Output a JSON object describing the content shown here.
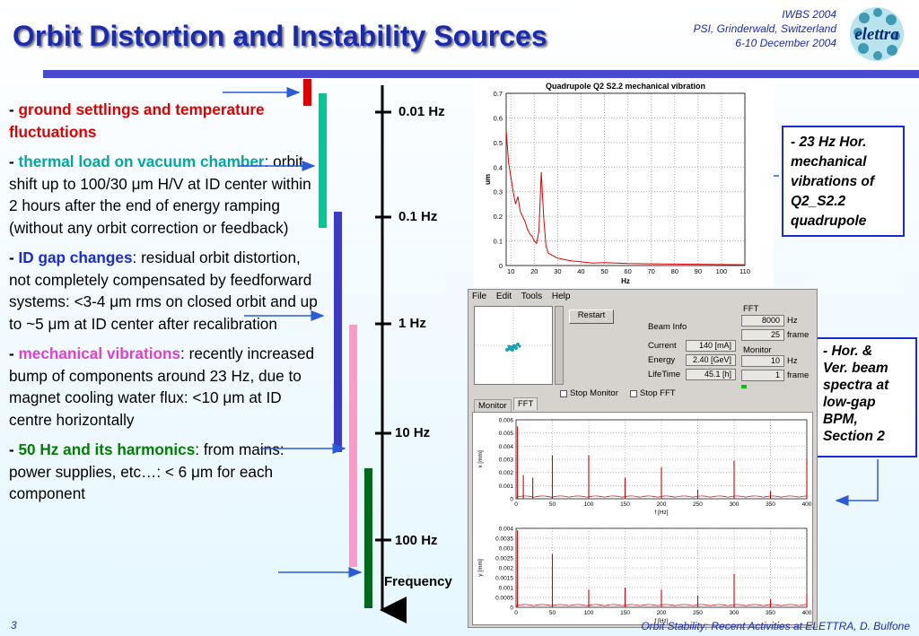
{
  "title": "Orbit Distortion and Instability Sources",
  "conference": {
    "line1": "IWBS 2004",
    "line2": "PSI, Grinderwald, Switzerland",
    "line3": "6-10 December 2004"
  },
  "logo_text": "elettra",
  "items": [
    {
      "lead": "- ",
      "highlight": "ground settlings and temperature fluctuations",
      "rest": ""
    },
    {
      "lead": "- ",
      "highlight": "thermal load on vacuum chamber",
      "rest": ": orbit shift up to 100/30 μm H/V at ID center within 2 hours after the end of energy ramping (without any orbit correction or feedback)"
    },
    {
      "lead": "- ",
      "highlight": "ID gap changes",
      "rest": ": residual orbit distortion, not completely compensated by feedforward systems: <3-4 μm rms on closed orbit and up to ~5 μm at ID center after recalibration"
    },
    {
      "lead": "- ",
      "highlight": "mechanical vibrations",
      "rest": ": recently increased bump of components around 23 Hz, due to magnet cooling water flux: <10 μm at ID centre horizontally"
    },
    {
      "lead": "- ",
      "highlight": "50 Hz and its harmonics",
      "rest": ": from mains: power supplies, etc…: < 6 μm for each component"
    }
  ],
  "frequency_axis": {
    "labels": [
      "0.01 Hz",
      "0.1 Hz",
      "1 Hz",
      "10 Hz",
      "100 Hz"
    ],
    "caption": "Frequency"
  },
  "colors": {
    "title": "#1a2bb0",
    "red": "#e00000",
    "teal": "#00c896",
    "blue": "#3a3ac8",
    "pink": "#ff99cc",
    "green": "#006a1a"
  },
  "callouts": {
    "box1": [
      "- 23 Hz Hor.",
      "mechanical",
      "vibrations of",
      "Q2_S2.2",
      "quadrupole"
    ],
    "box2": [
      "- Hor. &",
      "Ver. beam",
      "spectra at",
      "low-gap",
      "BPM,",
      "Section 2"
    ]
  },
  "chart_data": [
    {
      "type": "line",
      "title": "Quadrupole Q2 S2.2 mechanical vibration",
      "xlabel": "Hz",
      "ylabel": "um",
      "xlim": [
        8,
        110
      ],
      "ylim": [
        0,
        0.7
      ],
      "x_ticks": [
        10,
        20,
        30,
        40,
        50,
        60,
        70,
        80,
        90,
        100,
        110
      ],
      "y_ticks": [
        0,
        0.1,
        0.2,
        0.3,
        0.4,
        0.5,
        0.6,
        0.7
      ],
      "series": [
        {
          "x": [
            8,
            9,
            10,
            11,
            12,
            13,
            14,
            15,
            16,
            17,
            18,
            19,
            20,
            21,
            22,
            23,
            24,
            25,
            26,
            28,
            30,
            35,
            40,
            45,
            50,
            55,
            60,
            70,
            80,
            90,
            100,
            110
          ],
          "values": [
            0.55,
            0.42,
            0.36,
            0.3,
            0.25,
            0.28,
            0.22,
            0.2,
            0.18,
            0.15,
            0.13,
            0.12,
            0.1,
            0.09,
            0.14,
            0.38,
            0.2,
            0.08,
            0.05,
            0.04,
            0.03,
            0.02,
            0.015,
            0.01,
            0.012,
            0.01,
            0.008,
            0.007,
            0.006,
            0.005,
            0.004,
            0.003
          ]
        }
      ]
    },
    {
      "type": "line",
      "xlabel": "f [Hz]",
      "ylabel": "x [mm]",
      "xlim": [
        0,
        400
      ],
      "ylim": [
        0,
        0.006
      ],
      "x_ticks": [
        0,
        50,
        100,
        150,
        200,
        250,
        300,
        350,
        400
      ],
      "y_ticks": [
        0,
        0.001,
        0.002,
        0.003,
        0.004,
        0.005,
        0.006
      ],
      "peaks": [
        [
          2,
          0.0055
        ],
        [
          10,
          0.0018
        ],
        [
          23,
          0.0016
        ],
        [
          50,
          0.0033
        ],
        [
          100,
          0.0033
        ],
        [
          150,
          0.0016
        ],
        [
          200,
          0.0024
        ],
        [
          250,
          0.0007
        ],
        [
          300,
          0.0029
        ],
        [
          350,
          0.0006
        ],
        [
          400,
          0.0031
        ]
      ]
    },
    {
      "type": "line",
      "xlabel": "f [Hz]",
      "ylabel": "y [mm]",
      "xlim": [
        0,
        400
      ],
      "ylim": [
        0,
        0.004
      ],
      "x_ticks": [
        0,
        50,
        100,
        150,
        200,
        250,
        300,
        350,
        400
      ],
      "y_ticks": [
        0,
        0.0005,
        0.001,
        0.0015,
        0.002,
        0.0025,
        0.003,
        0.0035,
        0.004
      ],
      "peaks": [
        [
          2,
          0.0039
        ],
        [
          50,
          0.0027
        ],
        [
          100,
          0.0009
        ],
        [
          150,
          0.001
        ],
        [
          200,
          0.0009
        ],
        [
          250,
          0.0006
        ],
        [
          300,
          0.0017
        ],
        [
          350,
          0.0004
        ],
        [
          400,
          0.0007
        ]
      ]
    }
  ],
  "gui": {
    "menu": [
      "File",
      "Edit",
      "Tools",
      "Help"
    ],
    "restart": "Restart",
    "beam_info": "Beam Info",
    "current_label": "Current",
    "current_value": "140 [mA]",
    "energy_label": "Energy",
    "energy_value": "2.40 [GeV]",
    "lifetime_label": "LifeTime",
    "lifetime_value": "45.1 [h]",
    "fft_group": "FFT",
    "fft_value1": "8000",
    "fft_unit1": "Hz",
    "fft_value2": "25",
    "fft_unit2": "frame",
    "monitor_group": "Monitor",
    "mon_value1": "10",
    "mon_unit1": "Hz",
    "mon_value2": "1",
    "mon_unit2": "frame",
    "stop_monitor": "Stop Monitor",
    "stop_fft": "Stop FFT",
    "tab_monitor": "Monitor",
    "tab_fft": "FFT"
  },
  "page_number": "3",
  "footer": "Orbit Stability: Recent Activities at ELETTRA, D. Bulfone"
}
